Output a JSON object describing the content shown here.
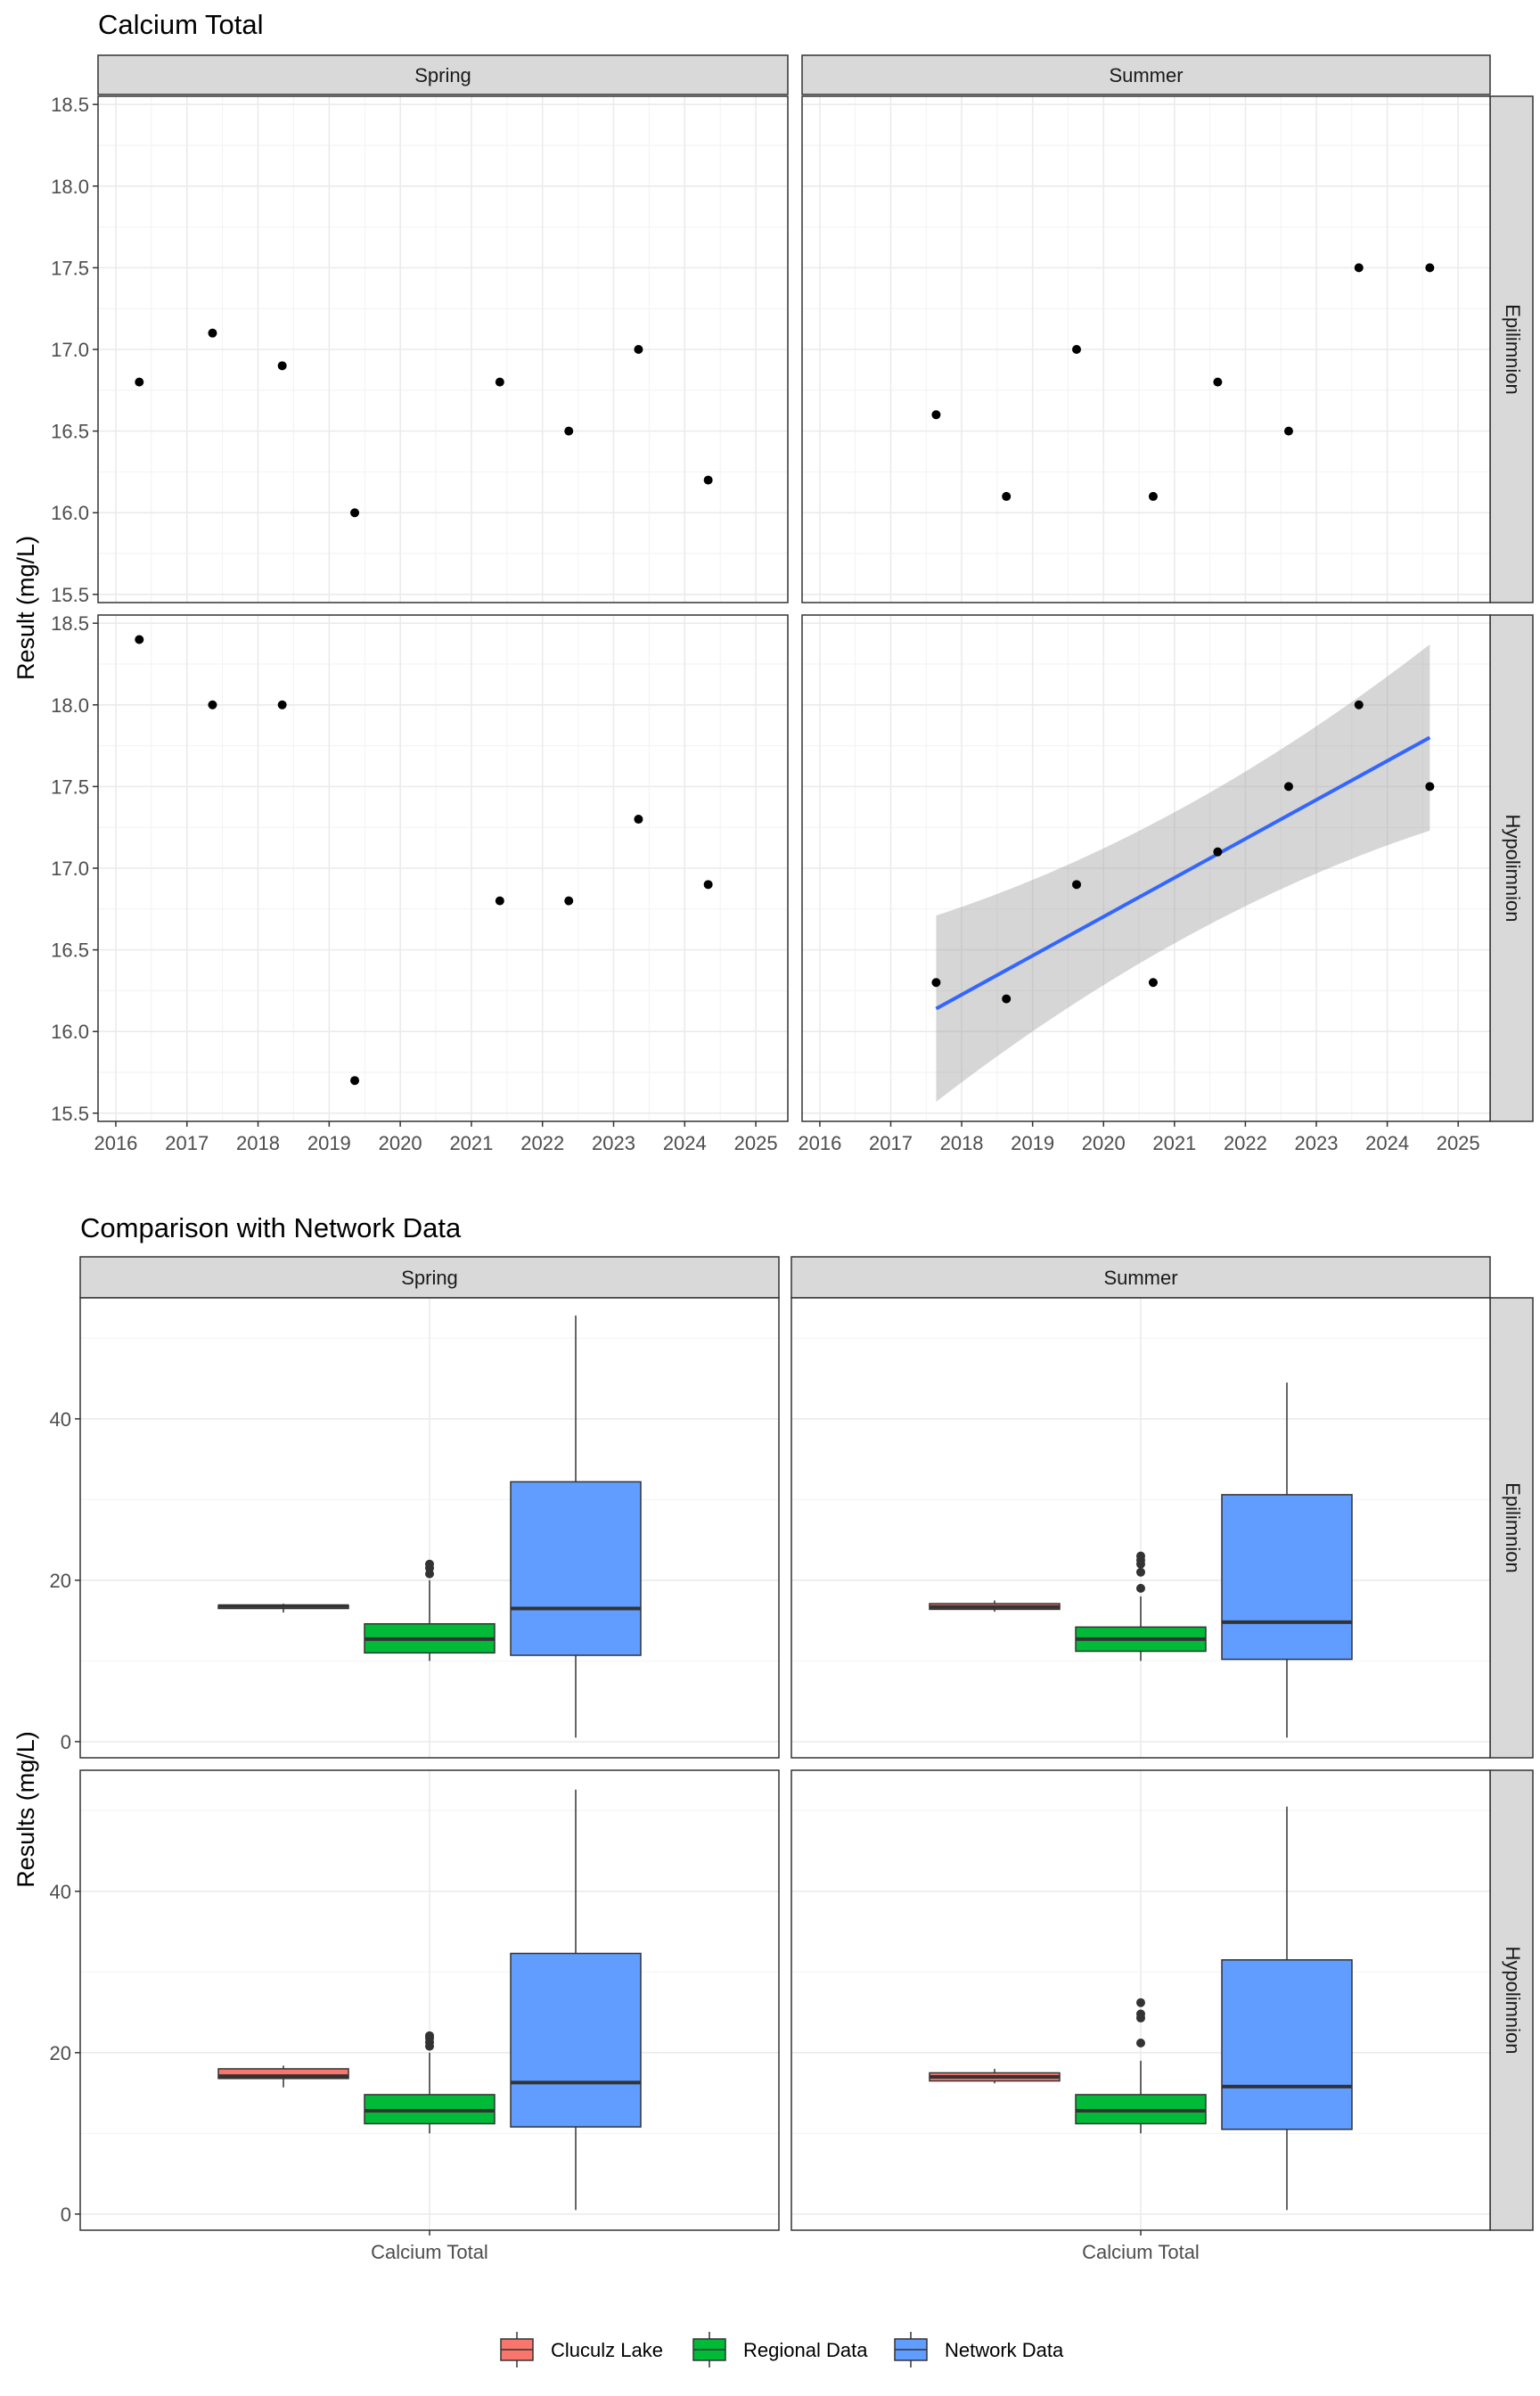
{
  "chart_data": [
    {
      "type": "scatter",
      "title": "Calcium Total",
      "ylabel": "Result (mg/L)",
      "xlabel": "",
      "xlim": [
        2015.75,
        2025.45
      ],
      "ylim": [
        15.45,
        18.55
      ],
      "x_ticks": [
        "2016",
        "2017",
        "2018",
        "2019",
        "2020",
        "2021",
        "2022",
        "2023",
        "2024",
        "2025"
      ],
      "y_ticks": [
        "15.5",
        "16.0",
        "16.5",
        "17.0",
        "17.5",
        "18.0",
        "18.5"
      ],
      "grid": true,
      "facet_columns": [
        "Spring",
        "Summer"
      ],
      "facet_rows": [
        "Epilimnion",
        "Hypolimnion"
      ],
      "panels": [
        {
          "column": "Spring",
          "row": "Epilimnion",
          "x": [
            2016.33,
            2017.36,
            2018.34,
            2019.36,
            2021.4,
            2022.37,
            2023.35,
            2024.33
          ],
          "y": [
            16.8,
            17.1,
            16.9,
            16.0,
            16.8,
            16.5,
            17.0,
            16.2
          ]
        },
        {
          "column": "Summer",
          "row": "Epilimnion",
          "x": [
            2017.64,
            2018.63,
            2019.62,
            2020.7,
            2021.61,
            2022.61,
            2023.6,
            2024.6
          ],
          "y": [
            16.6,
            16.1,
            17.0,
            16.1,
            16.8,
            16.5,
            17.5,
            17.5
          ]
        },
        {
          "column": "Spring",
          "row": "Hypolimnion",
          "x": [
            2016.33,
            2017.36,
            2018.34,
            2019.36,
            2021.4,
            2022.37,
            2023.35,
            2024.33
          ],
          "y": [
            18.4,
            18.0,
            18.0,
            15.7,
            16.8,
            16.8,
            17.3,
            16.9
          ]
        },
        {
          "column": "Summer",
          "row": "Hypolimnion",
          "x": [
            2017.64,
            2018.63,
            2019.62,
            2020.7,
            2021.61,
            2022.61,
            2023.6,
            2024.6
          ],
          "y": [
            16.3,
            16.2,
            16.9,
            16.3,
            17.1,
            17.5,
            18.0,
            17.5
          ],
          "trend": {
            "x": [
              2017.64,
              2024.6
            ],
            "y": [
              16.14,
              17.8
            ],
            "ci_lower": [
              15.57,
              17.23
            ],
            "ci_upper": [
              16.71,
              18.37
            ],
            "ci_mid_x": 2021.12,
            "ci_mid_lower": [
              16.76
            ],
            "ci_mid_upper": [
              17.18
            ]
          }
        }
      ]
    },
    {
      "type": "box",
      "title": "Comparison with Network Data",
      "ylabel": "Results (mg/L)",
      "xlabel": "",
      "categories": [
        "Calcium Total"
      ],
      "ylim": [
        -2,
        55
      ],
      "y_ticks": [
        "0",
        "20",
        "40"
      ],
      "grid": true,
      "facet_columns": [
        "Spring",
        "Summer"
      ],
      "facet_rows": [
        "Epilimnion",
        "Hypolimnion"
      ],
      "legend": {
        "position": "bottom",
        "items": [
          {
            "name": "Cluculz Lake",
            "color": "#F8766D"
          },
          {
            "name": "Regional Data",
            "color": "#00BA38"
          },
          {
            "name": "Network Data",
            "color": "#619CFF"
          }
        ]
      },
      "panels": [
        {
          "column": "Spring",
          "row": "Epilimnion",
          "boxes": [
            {
              "group": "Cluculz Lake",
              "min": 16.0,
              "q1": 16.5,
              "median": 16.8,
              "q3": 16.9,
              "max": 17.1,
              "outliers": []
            },
            {
              "group": "Regional Data",
              "min": 10.0,
              "q1": 11.0,
              "median": 12.7,
              "q3": 14.6,
              "max": 20.0,
              "outliers": [
                20.8,
                21.5,
                22.0
              ]
            },
            {
              "group": "Network Data",
              "min": 0.5,
              "q1": 10.7,
              "median": 16.5,
              "q3": 32.2,
              "max": 52.8,
              "outliers": []
            }
          ]
        },
        {
          "column": "Summer",
          "row": "Epilimnion",
          "boxes": [
            {
              "group": "Cluculz Lake",
              "min": 16.1,
              "q1": 16.4,
              "median": 16.7,
              "q3": 17.1,
              "max": 17.5,
              "outliers": []
            },
            {
              "group": "Regional Data",
              "min": 10.0,
              "q1": 11.2,
              "median": 12.7,
              "q3": 14.2,
              "max": 18.0,
              "outliers": [
                19.0,
                21.0,
                22.0,
                22.5,
                23.0
              ]
            },
            {
              "group": "Network Data",
              "min": 0.5,
              "q1": 10.2,
              "median": 14.8,
              "q3": 30.6,
              "max": 44.5,
              "outliers": []
            }
          ]
        },
        {
          "column": "Spring",
          "row": "Hypolimnion",
          "boxes": [
            {
              "group": "Cluculz Lake",
              "min": 15.7,
              "q1": 16.8,
              "median": 17.1,
              "q3": 18.0,
              "max": 18.4,
              "outliers": []
            },
            {
              "group": "Regional Data",
              "min": 10.0,
              "q1": 11.2,
              "median": 12.8,
              "q3": 14.8,
              "max": 20.0,
              "outliers": [
                20.8,
                21.3,
                21.8,
                22.1
              ]
            },
            {
              "group": "Network Data",
              "min": 0.5,
              "q1": 10.8,
              "median": 16.3,
              "q3": 32.3,
              "max": 52.6,
              "outliers": []
            }
          ]
        },
        {
          "column": "Summer",
          "row": "Hypolimnion",
          "boxes": [
            {
              "group": "Cluculz Lake",
              "min": 16.2,
              "q1": 16.5,
              "median": 17.0,
              "q3": 17.5,
              "max": 18.0,
              "outliers": []
            },
            {
              "group": "Regional Data",
              "min": 10.0,
              "q1": 11.2,
              "median": 12.8,
              "q3": 14.8,
              "max": 19.0,
              "outliers": [
                21.2,
                24.3,
                24.8,
                26.2
              ]
            },
            {
              "group": "Network Data",
              "min": 0.5,
              "q1": 10.5,
              "median": 15.8,
              "q3": 31.5,
              "max": 50.5,
              "outliers": []
            }
          ]
        }
      ]
    }
  ]
}
